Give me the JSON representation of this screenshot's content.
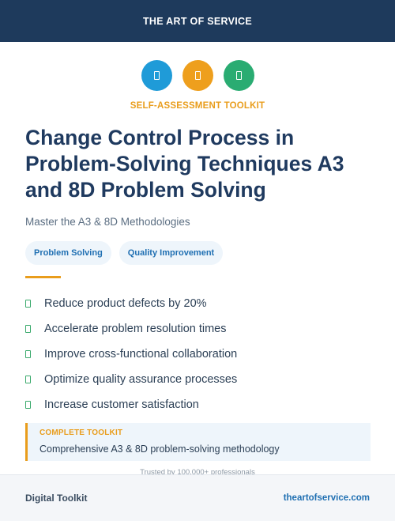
{
  "header": {
    "brand": "THE ART OF SERVICE"
  },
  "icons": [
    {
      "name": "blue-document-icon",
      "color": "#1f9bd8"
    },
    {
      "name": "orange-document-icon",
      "color": "#ee9f1d"
    },
    {
      "name": "green-document-icon",
      "color": "#2aac72"
    }
  ],
  "kicker": "SELF-ASSESSMENT TOOLKIT",
  "title": "Change Control Process in Problem-Solving Techniques A3 and 8D Problem Solving",
  "subtitle": "Master the A3 & 8D Methodologies",
  "tags": [
    "Problem Solving",
    "Quality Improvement"
  ],
  "benefits": [
    "Reduce product defects by 20%",
    "Accelerate problem resolution times",
    "Improve cross-functional collaboration",
    "Optimize quality assurance processes",
    "Increase customer satisfaction"
  ],
  "callout": {
    "label": "COMPLETE TOOLKIT",
    "text": "Comprehensive A3 & 8D problem-solving methodology"
  },
  "trusted": "Trusted by 100,000+ professionals",
  "footer": {
    "left": "Digital Toolkit",
    "right": "theartofservice.com"
  }
}
